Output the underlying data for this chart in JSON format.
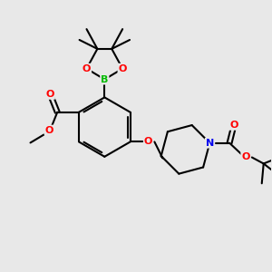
{
  "bg_color": "#e8e8e8",
  "bond_color": "#000000",
  "bond_width": 1.5,
  "atom_colors": {
    "O": "#ff0000",
    "B": "#00bb00",
    "N": "#0000ee",
    "C": "#000000"
  },
  "scale": 1.0
}
